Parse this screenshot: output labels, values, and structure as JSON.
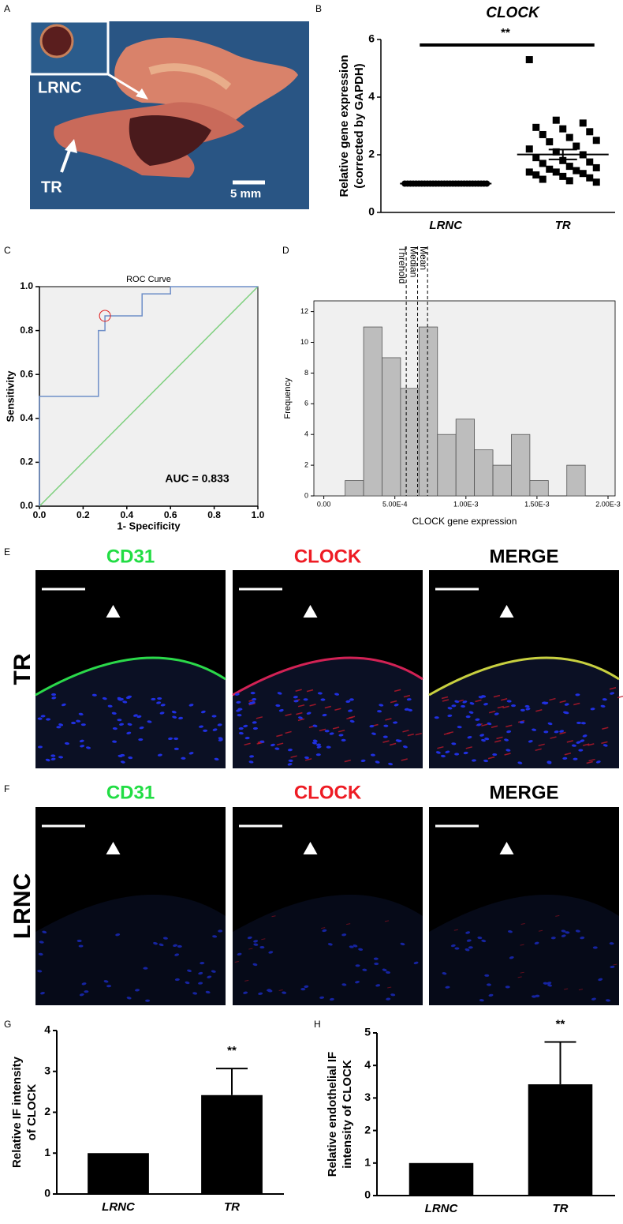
{
  "panel_labels": [
    "A",
    "B",
    "C",
    "D",
    "E",
    "F",
    "G",
    "H"
  ],
  "photo": {
    "labels": [
      "LRNC",
      "TR",
      "5 mm"
    ]
  },
  "micrographs": {
    "columns": [
      "CD31",
      "CLOCK",
      "MERGE"
    ],
    "column_colors": [
      "#22dd44",
      "#ee1c24",
      "#000000"
    ],
    "rows": [
      "TR",
      "LRNC"
    ]
  },
  "chart_data": [
    {
      "type": "dot",
      "title": "CLOCK",
      "ylabel": [
        "Relative gene expression",
        "(corrected by GAPDH)"
      ],
      "categories": [
        "LRNC",
        "TR"
      ],
      "markers": [
        "circle",
        "square"
      ],
      "points": [
        [
          1,
          1,
          1,
          1,
          1,
          1,
          1,
          1,
          1,
          1,
          1,
          1,
          1,
          1,
          1,
          1,
          1,
          1,
          1,
          1,
          1,
          1,
          1,
          1,
          1,
          1,
          1,
          1,
          1,
          1
        ],
        [
          5.3,
          3.2,
          3.1,
          2.95,
          2.9,
          2.8,
          2.7,
          2.6,
          2.5,
          2.45,
          2.3,
          2.2,
          2.1,
          2.0,
          1.9,
          1.8,
          1.75,
          1.7,
          1.6,
          1.55,
          1.5,
          1.45,
          1.4,
          1.4,
          1.35,
          1.3,
          1.25,
          1.2,
          1.15,
          1.1,
          1.05
        ]
      ],
      "means": [
        1,
        2.01
      ],
      "errors": [
        0,
        0.17
      ],
      "ylim": [
        0,
        6
      ],
      "yticks": [
        0,
        2,
        4,
        6
      ],
      "annotation": "**",
      "color": "#000000"
    },
    {
      "type": "line",
      "title": "ROC Curve",
      "xlabel": "1- Specificity",
      "ylabel": "Sensitivity",
      "x": [
        0,
        0,
        0.27,
        0.27,
        0.3,
        0.3,
        0.47,
        0.47,
        0.6,
        0.6,
        1
      ],
      "values": [
        0,
        0.5,
        0.5,
        0.8,
        0.8,
        0.867,
        0.867,
        0.967,
        0.967,
        1,
        1
      ],
      "color": "#6f8fc8",
      "reference": {
        "x": [
          0,
          1
        ],
        "values": [
          0,
          1
        ],
        "color": "#7fd07f"
      },
      "highlight": {
        "x": 0.3,
        "y": 0.867,
        "color": "#e02020"
      },
      "annotation": "AUC = 0.833",
      "xlim": [
        0,
        1
      ],
      "ylim": [
        0,
        1
      ],
      "xticks": [
        {
          "value": 0,
          "label": "0.0"
        },
        {
          "value": 0.2,
          "label": "0.2"
        },
        {
          "value": 0.4,
          "label": "0.4"
        },
        {
          "value": 0.6,
          "label": "0.6"
        },
        {
          "value": 0.8,
          "label": "0.8"
        },
        {
          "value": 1,
          "label": "1.0"
        }
      ],
      "yticks": [
        {
          "value": 0,
          "label": "0.0"
        },
        {
          "value": 0.2,
          "label": "0.2"
        },
        {
          "value": 0.4,
          "label": "0.4"
        },
        {
          "value": 0.6,
          "label": "0.6"
        },
        {
          "value": 0.8,
          "label": "0.8"
        },
        {
          "value": 1,
          "label": "1.0"
        }
      ]
    },
    {
      "type": "histogram",
      "xlabel": "CLOCK gene expression",
      "ylabel": "Frequency",
      "bins": [
        0.00015,
        0.00028,
        0.00041,
        0.00054,
        0.00067,
        0.0008,
        0.00093,
        0.00106,
        0.00119,
        0.00132,
        0.00145,
        0.00158,
        0.00171,
        0.00184
      ],
      "counts": [
        1,
        11,
        9,
        7,
        11,
        4,
        5,
        3,
        2,
        4,
        1,
        0,
        2
      ],
      "color": "#bdbdbd",
      "vlines": [
        {
          "label": "Threhold",
          "value": 0.00058
        },
        {
          "label": "Median",
          "value": 0.00066
        },
        {
          "label": "Mean",
          "value": 0.00073
        }
      ],
      "xlim": [
        -7e-05,
        0.00205
      ],
      "ylim": [
        0,
        12.7
      ],
      "xticks": [
        {
          "value": 0,
          "label": "0.00"
        },
        {
          "value": 0.0005,
          "label": "5.00E-4"
        },
        {
          "value": 0.001,
          "label": "1.00E-3"
        },
        {
          "value": 0.0015,
          "label": "1.50E-3"
        },
        {
          "value": 0.002,
          "label": "2.00E-3"
        }
      ],
      "yticks": [
        0,
        2,
        4,
        6,
        8,
        10,
        12
      ]
    },
    {
      "type": "bar",
      "ylabel": [
        "Relative IF intensity",
        "of CLOCK"
      ],
      "categories": [
        "LRNC",
        "TR"
      ],
      "values": [
        1,
        2.42
      ],
      "errors": [
        0,
        0.65
      ],
      "color": "#000000",
      "ylim": [
        0,
        4
      ],
      "yticks": [
        0,
        1,
        2,
        3,
        4
      ],
      "annotation": "**"
    },
    {
      "type": "bar",
      "ylabel": [
        "Relative endothelial IF",
        "intensity of CLOCK"
      ],
      "categories": [
        "LRNC",
        "TR"
      ],
      "values": [
        1,
        3.42
      ],
      "errors": [
        0,
        1.3
      ],
      "color": "#000000",
      "ylim": [
        0,
        5
      ],
      "yticks": [
        0,
        1,
        2,
        3,
        4,
        5
      ],
      "annotation": "**"
    }
  ]
}
